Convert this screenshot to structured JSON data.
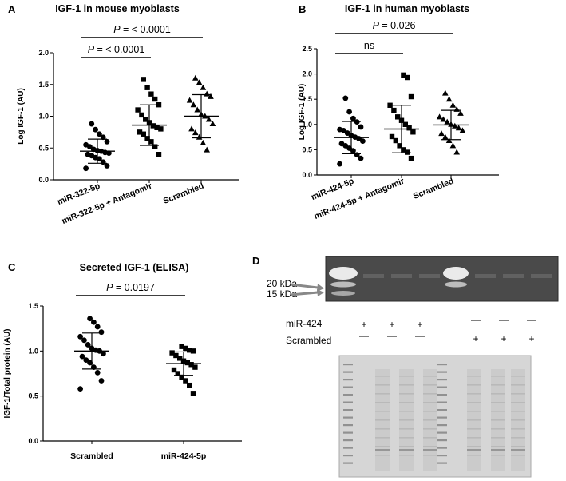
{
  "panels": [
    {
      "label": "A",
      "title": "IGF-1 in mouse myoblasts",
      "ylabel": "Log IGF-1 (AU)",
      "ylim": [
        0,
        2.0
      ],
      "yticks": [
        "0.0",
        "0.5",
        "1.0",
        "1.5",
        "2.0"
      ],
      "categories": [
        "miR-322-5p",
        "miR-322-5p + Antagomir",
        "Scrambled"
      ],
      "markers": [
        "circle",
        "square",
        "triangle"
      ],
      "stats": [
        {
          "mean": 0.45,
          "sd": 0.19
        },
        {
          "mean": 0.86,
          "sd": 0.32
        },
        {
          "mean": 1.0,
          "sd": 0.34
        }
      ],
      "points": [
        [
          0.18,
          0.22,
          0.28,
          0.33,
          0.35,
          0.38,
          0.4,
          0.42,
          0.43,
          0.45,
          0.46,
          0.48,
          0.52,
          0.55,
          0.6,
          0.67,
          0.72,
          0.79,
          0.88
        ],
        [
          0.4,
          0.52,
          0.6,
          0.65,
          0.72,
          0.75,
          0.8,
          0.82,
          0.85,
          0.9,
          0.95,
          1.02,
          1.1,
          1.18,
          1.27,
          1.35,
          1.45,
          1.58
        ],
        [
          0.47,
          0.58,
          0.67,
          0.74,
          0.8,
          0.88,
          0.95,
          1.0,
          1.03,
          1.1,
          1.18,
          1.25,
          1.31,
          1.35,
          1.45,
          1.53,
          1.6
        ]
      ],
      "comparisons": [
        {
          "text_prefix": "P",
          "text_rest": " = < 0.0001",
          "from": 0,
          "to": 1,
          "level": 1
        },
        {
          "text_prefix": "P",
          "text_rest": " = < 0.0001",
          "from": 0,
          "to": 2,
          "level": 2
        }
      ]
    },
    {
      "label": "B",
      "title": "IGF-1 in human myoblasts",
      "ylabel": "Log IGF-1 (AU)",
      "ylim": [
        0,
        2.5
      ],
      "yticks": [
        "0.0",
        "0.5",
        "1.0",
        "1.5",
        "2.0",
        "2.5"
      ],
      "categories": [
        "miR-424-5p",
        "miR-424-5p + Antagomir",
        "Scrambled"
      ],
      "markers": [
        "circle",
        "square",
        "triangle"
      ],
      "stats": [
        {
          "mean": 0.74,
          "sd": 0.32
        },
        {
          "mean": 0.91,
          "sd": 0.47
        },
        {
          "mean": 0.99,
          "sd": 0.29
        }
      ],
      "points": [
        [
          0.22,
          0.33,
          0.4,
          0.48,
          0.53,
          0.58,
          0.62,
          0.67,
          0.72,
          0.75,
          0.78,
          0.83,
          0.88,
          0.9,
          0.95,
          1.05,
          1.12,
          1.25,
          1.52
        ],
        [
          0.33,
          0.45,
          0.5,
          0.58,
          0.68,
          0.76,
          0.85,
          0.93,
          1.0,
          1.08,
          1.15,
          1.28,
          1.38,
          1.55,
          1.93,
          1.98
        ],
        [
          0.45,
          0.58,
          0.68,
          0.75,
          0.82,
          0.88,
          0.93,
          0.97,
          1.0,
          1.05,
          1.1,
          1.15,
          1.22,
          1.3,
          1.38,
          1.5,
          1.62
        ]
      ],
      "comparisons": [
        {
          "text_prefix": "",
          "text_rest": "ns",
          "from": 0,
          "to": 1,
          "level": 1
        },
        {
          "text_prefix": "P",
          "text_rest": " = 0.026",
          "from": 0,
          "to": 2,
          "level": 2
        }
      ]
    },
    {
      "label": "C",
      "title": "Secreted IGF-1 (ELISA)",
      "ylabel": "IGF-1/Total protein (AU)",
      "ylim": [
        0,
        1.5
      ],
      "yticks": [
        "0.0",
        "0.5",
        "1.0",
        "1.5"
      ],
      "categories": [
        "Scrambled",
        "miR-424-5p"
      ],
      "markers": [
        "circle",
        "square"
      ],
      "stats": [
        {
          "mean": 1.0,
          "sd": 0.2
        },
        {
          "mean": 0.86,
          "sd": 0.13
        }
      ],
      "points": [
        [
          0.58,
          0.67,
          0.76,
          0.82,
          0.87,
          0.9,
          0.94,
          0.97,
          1.0,
          1.01,
          1.03,
          1.07,
          1.12,
          1.16,
          1.21,
          1.27,
          1.32,
          1.36
        ],
        [
          0.53,
          0.62,
          0.67,
          0.71,
          0.75,
          0.79,
          0.82,
          0.85,
          0.87,
          0.89,
          0.92,
          0.95,
          0.98,
          1.0,
          1.01,
          1.03,
          1.05
        ]
      ],
      "comparisons": [
        {
          "text_prefix": "P",
          "text_rest": " = 0.0197",
          "from": 0,
          "to": 1,
          "level": 1
        }
      ]
    }
  ],
  "chart_data": [
    {
      "type": "scatter",
      "title": "IGF-1 in mouse myoblasts",
      "ylabel": "Log IGF-1 (AU)",
      "ylim": [
        0,
        2.0
      ],
      "categories": [
        "miR-322-5p",
        "miR-322-5p + Antagomir",
        "Scrambled"
      ],
      "series": [
        {
          "name": "miR-322-5p",
          "mean": 0.45,
          "sd": 0.19
        },
        {
          "name": "miR-322-5p + Antagomir",
          "mean": 0.86,
          "sd": 0.32
        },
        {
          "name": "Scrambled",
          "mean": 1.0,
          "sd": 0.34
        }
      ],
      "annotations": [
        "P = < 0.0001",
        "P = < 0.0001"
      ]
    },
    {
      "type": "scatter",
      "title": "IGF-1 in human myoblasts",
      "ylabel": "Log IGF-1 (AU)",
      "ylim": [
        0,
        2.5
      ],
      "categories": [
        "miR-424-5p",
        "miR-424-5p + Antagomir",
        "Scrambled"
      ],
      "series": [
        {
          "name": "miR-424-5p",
          "mean": 0.74,
          "sd": 0.32
        },
        {
          "name": "miR-424-5p + Antagomir",
          "mean": 0.91,
          "sd": 0.47
        },
        {
          "name": "Scrambled",
          "mean": 0.99,
          "sd": 0.29
        }
      ],
      "annotations": [
        "ns",
        "P = 0.026"
      ]
    },
    {
      "type": "scatter",
      "title": "Secreted IGF-1 (ELISA)",
      "ylabel": "IGF-1/Total protein (AU)",
      "ylim": [
        0,
        1.5
      ],
      "categories": [
        "Scrambled",
        "miR-424-5p"
      ],
      "series": [
        {
          "name": "Scrambled",
          "mean": 1.0,
          "sd": 0.2
        },
        {
          "name": "miR-424-5p",
          "mean": 0.86,
          "sd": 0.13
        }
      ],
      "annotations": [
        "P = 0.0197"
      ]
    }
  ],
  "blot": {
    "label": "D",
    "marker_20": "20 kDa",
    "marker_15": "15 kDa",
    "row1_label": "miR-424",
    "row2_label": "Scrambled",
    "row1_signs": [
      "+",
      "+",
      "+",
      "—",
      "—",
      "—"
    ],
    "row2_signs": [
      "—",
      "—",
      "—",
      "+",
      "+",
      "+"
    ]
  }
}
